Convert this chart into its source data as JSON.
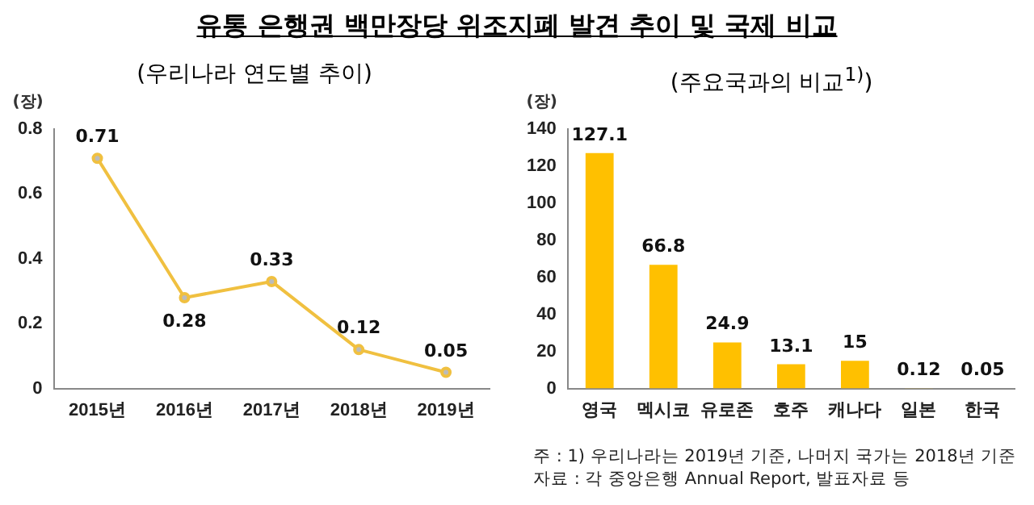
{
  "chart_data": [
    {
      "type": "line",
      "title": "유통 은행권 백만장당 위조지폐 발견 추이 및 국제 비교",
      "subtitle": "(우리나라 연도별 추이)",
      "ylabel": "(장)",
      "categories": [
        "2015년",
        "2016년",
        "2017년",
        "2018년",
        "2019년"
      ],
      "series": [
        {
          "color": "#f0c040",
          "values": [
            0.71,
            0.28,
            0.33,
            0.12,
            0.05
          ]
        }
      ],
      "ylim": [
        0,
        0.8
      ],
      "yticks": [
        0,
        0.2,
        0.4,
        0.6,
        0.8
      ],
      "marker": "circle",
      "data_labels": true,
      "grid": false,
      "legend": false
    },
    {
      "type": "bar",
      "subtitle": "(주요국과의 비교$^{1)}$)",
      "ylabel": "(장)",
      "categories": [
        "영국",
        "멕시코",
        "유로존",
        "호주",
        "캐나다",
        "일본",
        "한국"
      ],
      "series": [
        {
          "color": "#ffc000",
          "values": [
            127.1,
            66.8,
            24.9,
            13.1,
            15,
            0.12,
            0.05
          ]
        }
      ],
      "ylim": [
        0,
        140
      ],
      "yticks": [
        0,
        20,
        40,
        60,
        80,
        100,
        120,
        140
      ],
      "data_labels": true,
      "grid": false,
      "legend": false,
      "annotations": [
        "주 : 1) 우리나라는 2019년 기준, 나머지 국가는 2018년 기준",
        "자료 : 각 중앙은행 Annual Report, 발표자료 등"
      ]
    }
  ]
}
